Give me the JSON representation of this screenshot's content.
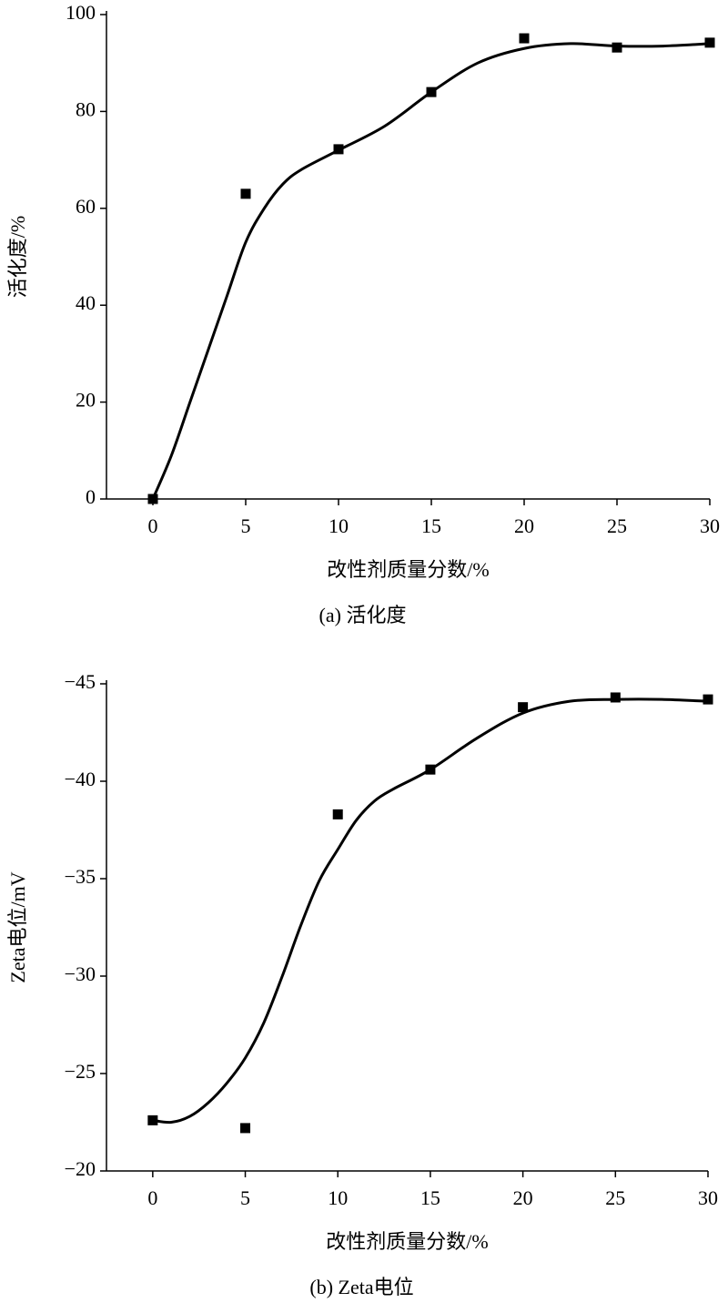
{
  "chart_data": [
    {
      "type": "scatter",
      "title": "(a) 活化度",
      "x_label": "改性剂质量分数/%",
      "y_label": "活化度/%",
      "x": [
        0,
        5,
        10,
        15,
        20,
        25,
        30
      ],
      "values": [
        0,
        63,
        72.2,
        84,
        95.1,
        93.2,
        94.2
      ],
      "color": "#000000",
      "fit": {
        "x": [
          0,
          1,
          2,
          3,
          4,
          5,
          6,
          7,
          8,
          10,
          12.5,
          15,
          17.5,
          20,
          22.5,
          25,
          27.5,
          30
        ],
        "values": [
          0,
          9,
          20,
          31,
          42,
          53,
          60,
          65,
          68,
          72,
          77,
          84,
          90,
          93,
          94,
          93.5,
          93.5,
          94
        ]
      },
      "xlim": [
        -2.5,
        30
      ],
      "xticks": [
        0,
        5,
        10,
        15,
        20,
        25,
        30
      ],
      "ylim": [
        0,
        100
      ],
      "yticks": [
        0,
        20,
        40,
        60,
        80,
        100
      ]
    },
    {
      "type": "scatter",
      "title": "(b) Zeta电位",
      "x_label": "改性剂质量分数/%",
      "y_label": "Zeta电位/mV",
      "x": [
        0,
        5,
        10,
        15,
        20,
        25,
        30
      ],
      "values": [
        -22.6,
        -22.2,
        -38.3,
        -40.6,
        -43.8,
        -44.3,
        -44.2
      ],
      "color": "#000000",
      "fit": {
        "x": [
          0,
          1,
          2,
          3,
          4,
          5,
          6,
          7,
          8,
          9,
          10,
          11,
          12,
          13,
          15,
          17.5,
          20,
          22.5,
          25,
          27.5,
          30
        ],
        "values": [
          -22.6,
          -22.5,
          -22.8,
          -23.5,
          -24.5,
          -25.8,
          -27.6,
          -30,
          -32.6,
          -34.9,
          -36.5,
          -38,
          -39,
          -39.6,
          -40.6,
          -42.2,
          -43.5,
          -44.1,
          -44.2,
          -44.2,
          -44.1
        ]
      },
      "xlim": [
        -2.5,
        30
      ],
      "xticks": [
        0,
        5,
        10,
        15,
        20,
        25,
        30
      ],
      "ylim": [
        -20,
        -45
      ],
      "yticks": [
        {
          "value": -20,
          "label": "−20"
        },
        {
          "value": -25,
          "label": "−25"
        },
        {
          "value": -30,
          "label": "−30"
        },
        {
          "value": -35,
          "label": "−35"
        },
        {
          "value": -40,
          "label": "−40"
        },
        {
          "value": -45,
          "label": "−45"
        }
      ]
    }
  ]
}
